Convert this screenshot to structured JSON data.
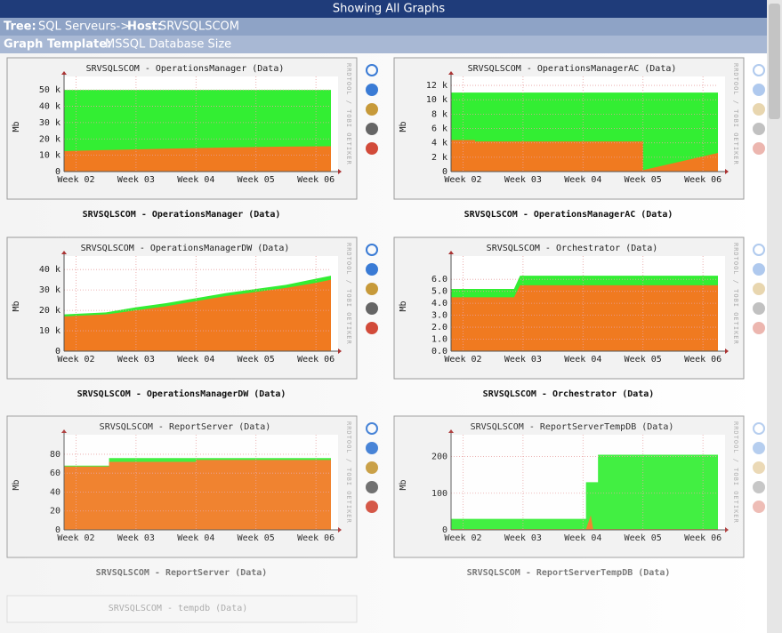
{
  "header": {
    "title": "Showing All Graphs",
    "tree_label": "Tree:",
    "tree": "SQL Serveurs->",
    "host_label": "Host:",
    "host": "SRVSQLSCOM",
    "template_label": "Graph Template:",
    "template": "MSSQL Database Size"
  },
  "watermark": "RRDTOOL / TOBI OETIKER",
  "partial_caption": "SRVSQLSCOM - tempdb (Data)",
  "chart_data": [
    {
      "type": "area",
      "title": "SRVSQLSCOM - OperationsManager (Data)",
      "caption": "SRVSQLSCOM - OperationsManager (Data)",
      "ylabel": "Mb",
      "x": [
        1.8,
        2.5,
        3.5,
        4.5,
        5.5,
        6.25
      ],
      "series": [
        {
          "color": "#33ee33",
          "values": [
            50000,
            50000,
            50000,
            50000,
            50000,
            50000
          ]
        },
        {
          "color": "#f07a20",
          "values": [
            12500,
            13200,
            14000,
            14800,
            15300,
            15500
          ]
        }
      ],
      "xlim": [
        1.8,
        6.25
      ],
      "xticks": [
        {
          "value": 2,
          "label": "Week 02"
        },
        {
          "value": 3,
          "label": "Week 03"
        },
        {
          "value": 4,
          "label": "Week 04"
        },
        {
          "value": 5,
          "label": "Week 05"
        },
        {
          "value": 6,
          "label": "Week 06"
        }
      ],
      "ylim": [
        0,
        55000
      ],
      "yticks": [
        0,
        {
          "value": 10000,
          "label": "10 k"
        },
        {
          "value": 20000,
          "label": "20 k"
        },
        {
          "value": 30000,
          "label": "30 k"
        },
        {
          "value": 40000,
          "label": "40 k"
        },
        {
          "value": 50000,
          "label": "50 k"
        }
      ],
      "grid": true
    },
    {
      "type": "area",
      "title": "SRVSQLSCOM - OperationsManagerAC (Data)",
      "caption": "SRVSQLSCOM - OperationsManagerAC (Data)",
      "ylabel": "Mb",
      "x": [
        1.8,
        2.2,
        2.2,
        5.0,
        5.0,
        6.25
      ],
      "series": [
        {
          "color": "#33ee33",
          "values": [
            11000,
            11000,
            11000,
            11000,
            11000,
            11000
          ]
        },
        {
          "color": "#f07a20",
          "values": [
            4400,
            4400,
            4200,
            4200,
            200,
            2600
          ]
        }
      ],
      "xlim": [
        1.8,
        6.25
      ],
      "xticks": [
        {
          "value": 2,
          "label": "Week 02"
        },
        {
          "value": 3,
          "label": "Week 03"
        },
        {
          "value": 4,
          "label": "Week 04"
        },
        {
          "value": 5,
          "label": "Week 05"
        },
        {
          "value": 6,
          "label": "Week 06"
        }
      ],
      "ylim": [
        0,
        12500
      ],
      "yticks": [
        0,
        {
          "value": 2000,
          "label": "2 k"
        },
        {
          "value": 4000,
          "label": "4 k"
        },
        {
          "value": 6000,
          "label": "6 k"
        },
        {
          "value": 8000,
          "label": "8 k"
        },
        {
          "value": 10000,
          "label": "10 k"
        },
        {
          "value": 12000,
          "label": "12 k"
        }
      ],
      "grid": true
    },
    {
      "type": "area",
      "title": "SRVSQLSCOM - OperationsManagerDW (Data)",
      "caption": "SRVSQLSCOM - OperationsManagerDW (Data)",
      "ylabel": "Mb",
      "x": [
        1.8,
        2.5,
        3.0,
        3.5,
        4.0,
        4.5,
        5.0,
        5.5,
        6.0,
        6.25
      ],
      "series": [
        {
          "color": "#33ee33",
          "values": [
            18000,
            19000,
            21500,
            23500,
            26000,
            28500,
            30500,
            32500,
            35500,
            37000
          ]
        },
        {
          "color": "#f07a20",
          "values": [
            17000,
            18000,
            20000,
            22000,
            24500,
            27000,
            29000,
            31000,
            33500,
            35000
          ]
        }
      ],
      "xlim": [
        1.8,
        6.25
      ],
      "xticks": [
        {
          "value": 2,
          "label": "Week 02"
        },
        {
          "value": 3,
          "label": "Week 03"
        },
        {
          "value": 4,
          "label": "Week 04"
        },
        {
          "value": 5,
          "label": "Week 05"
        },
        {
          "value": 6,
          "label": "Week 06"
        }
      ],
      "ylim": [
        0,
        44000
      ],
      "yticks": [
        0,
        {
          "value": 10000,
          "label": "10 k"
        },
        {
          "value": 20000,
          "label": "20 k"
        },
        {
          "value": 30000,
          "label": "30 k"
        },
        {
          "value": 40000,
          "label": "40 k"
        }
      ],
      "grid": true
    },
    {
      "type": "area",
      "title": "SRVSQLSCOM - Orchestrator (Data)",
      "caption": "SRVSQLSCOM - Orchestrator (Data)",
      "ylabel": "Mb",
      "x": [
        1.8,
        2.85,
        2.95,
        6.25
      ],
      "series": [
        {
          "color": "#33ee33",
          "values": [
            5.2,
            5.2,
            6.3,
            6.3
          ]
        },
        {
          "color": "#f07a20",
          "values": [
            4.5,
            4.5,
            5.5,
            5.5
          ]
        }
      ],
      "xlim": [
        1.8,
        6.25
      ],
      "xticks": [
        {
          "value": 2,
          "label": "Week 02"
        },
        {
          "value": 3,
          "label": "Week 03"
        },
        {
          "value": 4,
          "label": "Week 04"
        },
        {
          "value": 5,
          "label": "Week 05"
        },
        {
          "value": 6,
          "label": "Week 06"
        }
      ],
      "ylim": [
        0,
        7.5
      ],
      "yticks": [
        {
          "value": 0,
          "label": "0.0"
        },
        {
          "value": 1,
          "label": "1.0"
        },
        {
          "value": 2,
          "label": "2.0"
        },
        {
          "value": 3,
          "label": "3.0"
        },
        {
          "value": 4,
          "label": "4.0"
        },
        {
          "value": 5,
          "label": "5.0"
        },
        {
          "value": 6,
          "label": "6.0"
        }
      ],
      "grid": true
    },
    {
      "type": "area",
      "title": "SRVSQLSCOM - ReportServer (Data)",
      "caption": "SRVSQLSCOM - ReportServer (Data)",
      "ylabel": "Mb",
      "x": [
        1.8,
        2.55,
        2.55,
        4.0,
        4.0,
        6.25
      ],
      "series": [
        {
          "color": "#33ee33",
          "values": [
            68,
            68,
            76,
            76,
            76,
            76
          ]
        },
        {
          "color": "#f07a20",
          "values": [
            67,
            67,
            72,
            72,
            74,
            74
          ]
        }
      ],
      "xlim": [
        1.8,
        6.25
      ],
      "xticks": [
        {
          "value": 2,
          "label": "Week 02"
        },
        {
          "value": 3,
          "label": "Week 03"
        },
        {
          "value": 4,
          "label": "Week 04"
        },
        {
          "value": 5,
          "label": "Week 05"
        },
        {
          "value": 6,
          "label": "Week 06"
        }
      ],
      "ylim": [
        0,
        95
      ],
      "yticks": [
        0,
        20,
        40,
        60,
        80
      ],
      "grid": true
    },
    {
      "type": "area",
      "title": "SRVSQLSCOM - ReportServerTempDB (Data)",
      "caption": "SRVSQLSCOM - ReportServerTempDB (Data)",
      "ylabel": "Mb",
      "x": [
        1.8,
        4.05,
        4.05,
        4.13,
        4.17,
        4.25,
        4.25,
        6.25
      ],
      "series": [
        {
          "color": "#33ee33",
          "values": [
            30,
            30,
            130,
            130,
            130,
            130,
            205,
            205
          ]
        },
        {
          "color": "#f07a20",
          "values": [
            2,
            2,
            2,
            40,
            2,
            2,
            2,
            2
          ]
        }
      ],
      "xlim": [
        1.8,
        6.25
      ],
      "xticks": [
        {
          "value": 2,
          "label": "Week 02"
        },
        {
          "value": 3,
          "label": "Week 03"
        },
        {
          "value": 4,
          "label": "Week 04"
        },
        {
          "value": 5,
          "label": "Week 05"
        },
        {
          "value": 6,
          "label": "Week 06"
        }
      ],
      "ylim": [
        0,
        245
      ],
      "yticks": [
        0,
        100,
        200
      ],
      "grid": true
    }
  ]
}
